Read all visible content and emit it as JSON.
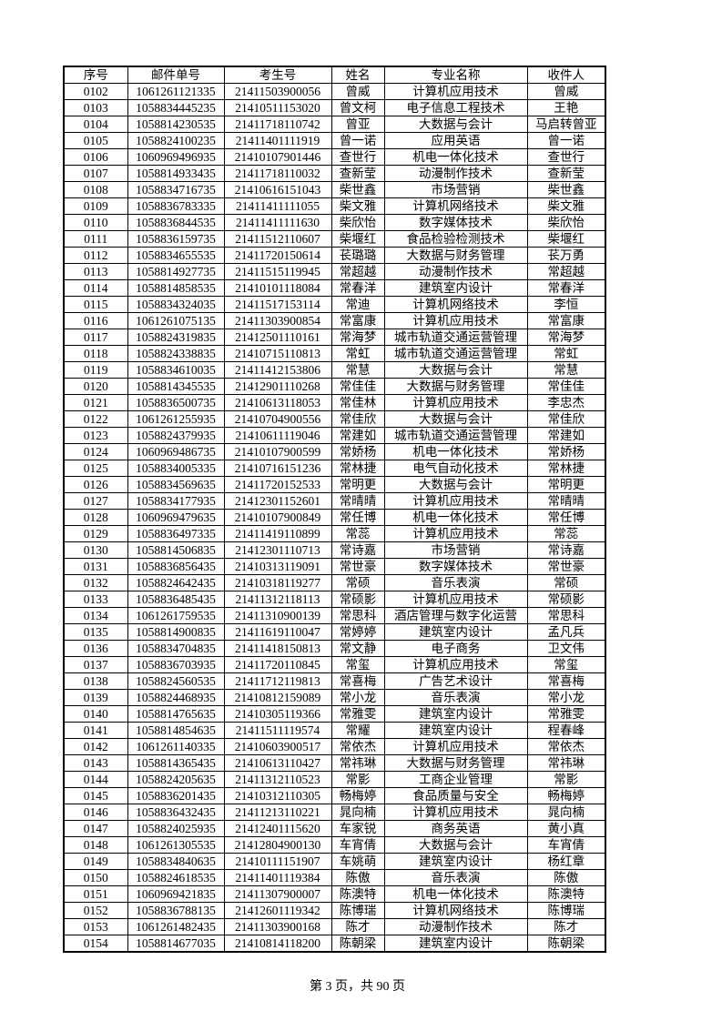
{
  "table": {
    "headers": [
      "序号",
      "邮件单号",
      "考生号",
      "姓名",
      "专业名称",
      "收件人"
    ],
    "rows": [
      [
        "0102",
        "1061261121335",
        "21411503900056",
        "曾威",
        "计算机应用技术",
        "曾威"
      ],
      [
        "0103",
        "1058834445235",
        "21410511153020",
        "曾文柯",
        "电子信息工程技术",
        "王艳"
      ],
      [
        "0104",
        "1058814230535",
        "21411718110742",
        "曾亚",
        "大数据与会计",
        "马启转曾亚"
      ],
      [
        "0105",
        "1058824100235",
        "21411401111919",
        "曾一诺",
        "应用英语",
        "曾一诺"
      ],
      [
        "0106",
        "1060969496935",
        "21410107901446",
        "查世行",
        "机电一体化技术",
        "查世行"
      ],
      [
        "0107",
        "1058814933435",
        "21411718110032",
        "查新莹",
        "动漫制作技术",
        "查新莹"
      ],
      [
        "0108",
        "1058834716735",
        "21410616151043",
        "柴世鑫",
        "市场营销",
        "柴世鑫"
      ],
      [
        "0109",
        "1058836783335",
        "21411411111055",
        "柴文雅",
        "计算机网络技术",
        "柴文雅"
      ],
      [
        "0110",
        "1058836844535",
        "21411411111630",
        "柴欣怡",
        "数字媒体技术",
        "柴欣怡"
      ],
      [
        "0111",
        "1058836159735",
        "21411512110607",
        "柴堰红",
        "食品检验检测技术",
        "柴堰红"
      ],
      [
        "0112",
        "1058834655535",
        "21411720150614",
        "苌璐璐",
        "大数据与财务管理",
        "苌万勇"
      ],
      [
        "0113",
        "1058814927735",
        "21411515119945",
        "常超越",
        "动漫制作技术",
        "常超越"
      ],
      [
        "0114",
        "1058814858535",
        "21410101118084",
        "常春洋",
        "建筑室内设计",
        "常春洋"
      ],
      [
        "0115",
        "1058834324035",
        "21411517153114",
        "常迪",
        "计算机网络技术",
        "李恒"
      ],
      [
        "0116",
        "1061261075135",
        "21411303900854",
        "常富康",
        "计算机应用技术",
        "常富康"
      ],
      [
        "0117",
        "1058824319835",
        "21412501110161",
        "常海梦",
        "城市轨道交通运营管理",
        "常海梦"
      ],
      [
        "0118",
        "1058824338835",
        "21410715110813",
        "常虹",
        "城市轨道交通运营管理",
        "常虹"
      ],
      [
        "0119",
        "1058834610035",
        "21411412153806",
        "常慧",
        "大数据与会计",
        "常慧"
      ],
      [
        "0120",
        "1058814345535",
        "21412901110268",
        "常佳佳",
        "大数据与财务管理",
        "常佳佳"
      ],
      [
        "0121",
        "1058836500735",
        "21410613118053",
        "常佳林",
        "计算机应用技术",
        "李忠杰"
      ],
      [
        "0122",
        "1061261255935",
        "21410704900556",
        "常佳欣",
        "大数据与会计",
        "常佳欣"
      ],
      [
        "0123",
        "1058824379935",
        "21410611119046",
        "常建如",
        "城市轨道交通运营管理",
        "常建如"
      ],
      [
        "0124",
        "1060969486735",
        "21410107900599",
        "常娇杨",
        "机电一体化技术",
        "常娇杨"
      ],
      [
        "0125",
        "1058834005335",
        "21410716151236",
        "常林捷",
        "电气自动化技术",
        "常林捷"
      ],
      [
        "0126",
        "1058834569635",
        "21411720152533",
        "常明更",
        "大数据与会计",
        "常明更"
      ],
      [
        "0127",
        "1058834177935",
        "21412301152601",
        "常晴晴",
        "计算机应用技术",
        "常晴晴"
      ],
      [
        "0128",
        "1060969479635",
        "21410107900849",
        "常任博",
        "机电一体化技术",
        "常任博"
      ],
      [
        "0129",
        "1058836497335",
        "21411419110899",
        "常蕊",
        "计算机应用技术",
        "常蕊"
      ],
      [
        "0130",
        "1058814506835",
        "21412301110713",
        "常诗嘉",
        "市场营销",
        "常诗嘉"
      ],
      [
        "0131",
        "1058836856435",
        "21410313119091",
        "常世豪",
        "数字媒体技术",
        "常世豪"
      ],
      [
        "0132",
        "1058824642435",
        "21410318119277",
        "常硕",
        "音乐表演",
        "常硕"
      ],
      [
        "0133",
        "1058836485435",
        "21411312118113",
        "常硕影",
        "计算机应用技术",
        "常硕影"
      ],
      [
        "0134",
        "1061261759535",
        "21411310900139",
        "常思科",
        "酒店管理与数字化运营",
        "常思科"
      ],
      [
        "0135",
        "1058814900835",
        "21411619110047",
        "常婷婷",
        "建筑室内设计",
        "孟凡兵"
      ],
      [
        "0136",
        "1058834704835",
        "21411418150813",
        "常文静",
        "电子商务",
        "卫文伟"
      ],
      [
        "0137",
        "1058836703935",
        "21411720110845",
        "常玺",
        "计算机应用技术",
        "常玺"
      ],
      [
        "0138",
        "1058824560535",
        "21411712119813",
        "常喜梅",
        "广告艺术设计",
        "常喜梅"
      ],
      [
        "0139",
        "1058824468935",
        "21410812159089",
        "常小龙",
        "音乐表演",
        "常小龙"
      ],
      [
        "0140",
        "1058814765635",
        "21410305119366",
        "常雅雯",
        "建筑室内设计",
        "常雅雯"
      ],
      [
        "0141",
        "1058814854635",
        "21411511119574",
        "常耀",
        "建筑室内设计",
        "程春峰"
      ],
      [
        "0142",
        "1061261140335",
        "21410603900517",
        "常依杰",
        "计算机应用技术",
        "常依杰"
      ],
      [
        "0143",
        "1058814365435",
        "21410613110427",
        "常祎琳",
        "大数据与财务管理",
        "常祎琳"
      ],
      [
        "0144",
        "1058824205635",
        "21411312110523",
        "常影",
        "工商企业管理",
        "常影"
      ],
      [
        "0145",
        "1058836201435",
        "21410312110305",
        "畅梅婷",
        "食品质量与安全",
        "畅梅婷"
      ],
      [
        "0146",
        "1058836432435",
        "21411213110221",
        "晁向楠",
        "计算机应用技术",
        "晁向楠"
      ],
      [
        "0147",
        "1058824025935",
        "21412401115620",
        "车家锐",
        "商务英语",
        "黄小真"
      ],
      [
        "0148",
        "1061261305535",
        "21412804900130",
        "车宵倩",
        "大数据与会计",
        "车宵倩"
      ],
      [
        "0149",
        "1058834840635",
        "21410111151907",
        "车姚萌",
        "建筑室内设计",
        "杨红章"
      ],
      [
        "0150",
        "1058824618535",
        "21411401119384",
        "陈傲",
        "音乐表演",
        "陈傲"
      ],
      [
        "0151",
        "1060969421835",
        "21411307900007",
        "陈澳特",
        "机电一体化技术",
        "陈澳特"
      ],
      [
        "0152",
        "1058836788135",
        "21412601119342",
        "陈博瑞",
        "计算机网络技术",
        "陈博瑞"
      ],
      [
        "0153",
        "1061261482435",
        "21411303900168",
        "陈才",
        "动漫制作技术",
        "陈才"
      ],
      [
        "0154",
        "1058814677035",
        "21410814118200",
        "陈朝梁",
        "建筑室内设计",
        "陈朝梁"
      ]
    ]
  },
  "footer": {
    "page_label": "第 3 页，共 90 页"
  }
}
